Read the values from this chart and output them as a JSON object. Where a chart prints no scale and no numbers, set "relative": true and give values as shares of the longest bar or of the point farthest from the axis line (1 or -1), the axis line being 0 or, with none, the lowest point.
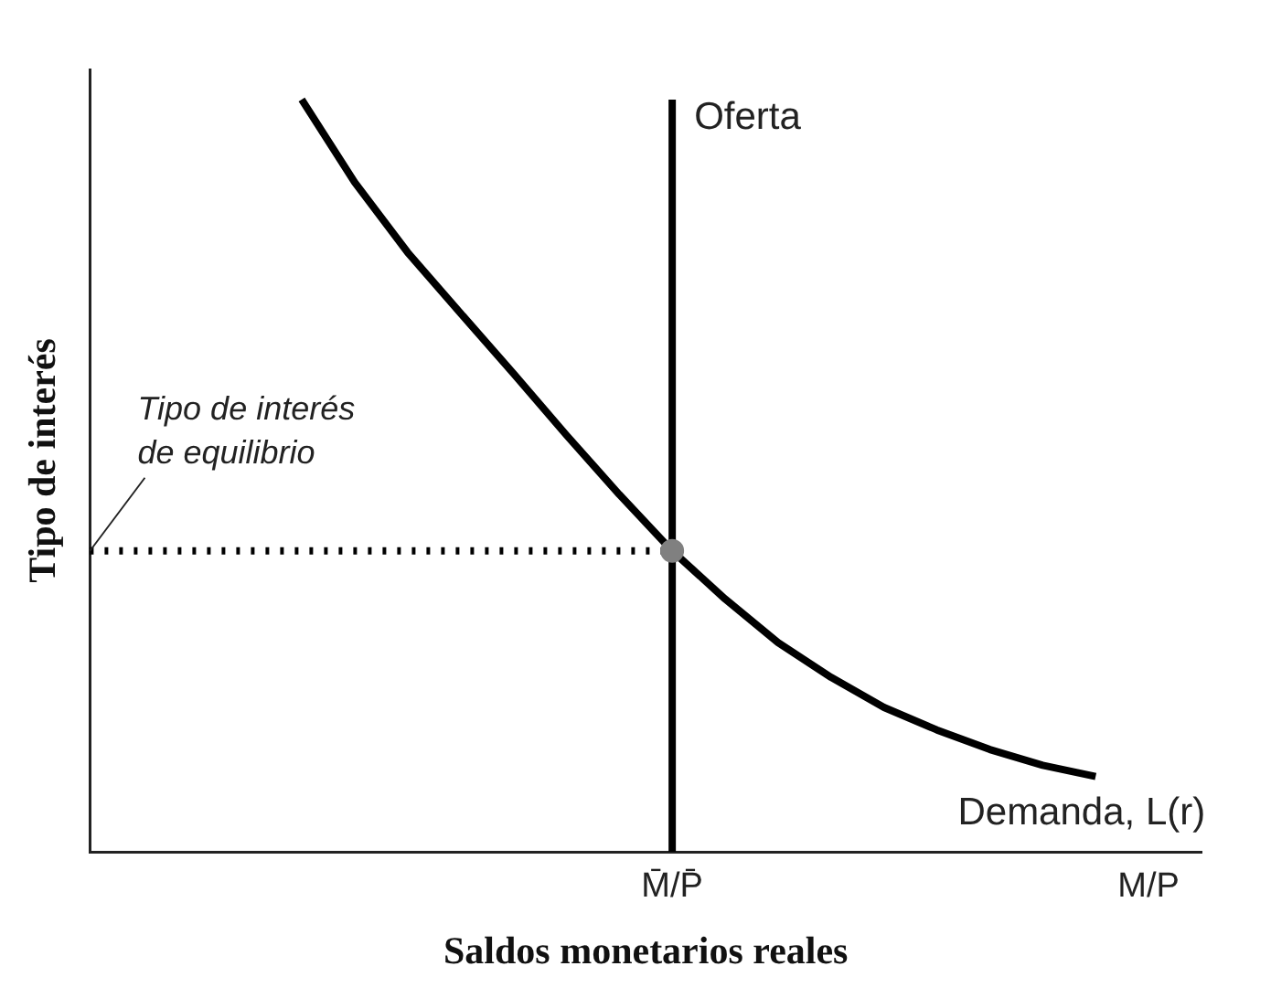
{
  "chart_data": {
    "type": "line",
    "relative": true,
    "xlabel": "Saldos monetarios reales",
    "ylabel": "Tipo de interés",
    "categories": [
      null,
      null,
      null,
      null,
      null,
      null,
      null,
      null,
      null,
      null,
      null,
      "M̄/P̄",
      null,
      null,
      null,
      null,
      null,
      null,
      null,
      null,
      "M/P",
      null
    ],
    "grid": false,
    "legend": false,
    "marker": "none",
    "annotations": [
      {
        "text": "Tipo de interés de equilibrio",
        "y": 0.4
      }
    ],
    "series": [
      {
        "name": "Oferta",
        "color": "#000000",
        "x": [
          "M̄/P̄",
          "M̄/P̄"
        ],
        "values": [
          0,
          1
        ]
      },
      {
        "name": "Demanda, L(r)",
        "color": "#000000",
        "values": [
          null,
          null,
          null,
          null,
          1,
          0.89,
          0.797,
          0.716,
          0.636,
          0.554,
          0.475,
          0.4,
          0.336,
          0.278,
          0.232,
          0.192,
          0.162,
          0.136,
          0.115,
          0.1,
          null,
          null
        ]
      },
      {
        "color": "#000000",
        "line_style": "dotted",
        "values": [
          0.4,
          0.4,
          0.4,
          0.4,
          0.4,
          0.4,
          0.4,
          0.4,
          0.4,
          0.4,
          0.4,
          0.4,
          null,
          null,
          null,
          null,
          null,
          null,
          null,
          null,
          null,
          null
        ]
      },
      {
        "type": "scatter",
        "color": "#808080",
        "marker": "circle",
        "x": [
          "M̄/P̄"
        ],
        "values": [
          0.4
        ]
      }
    ]
  }
}
